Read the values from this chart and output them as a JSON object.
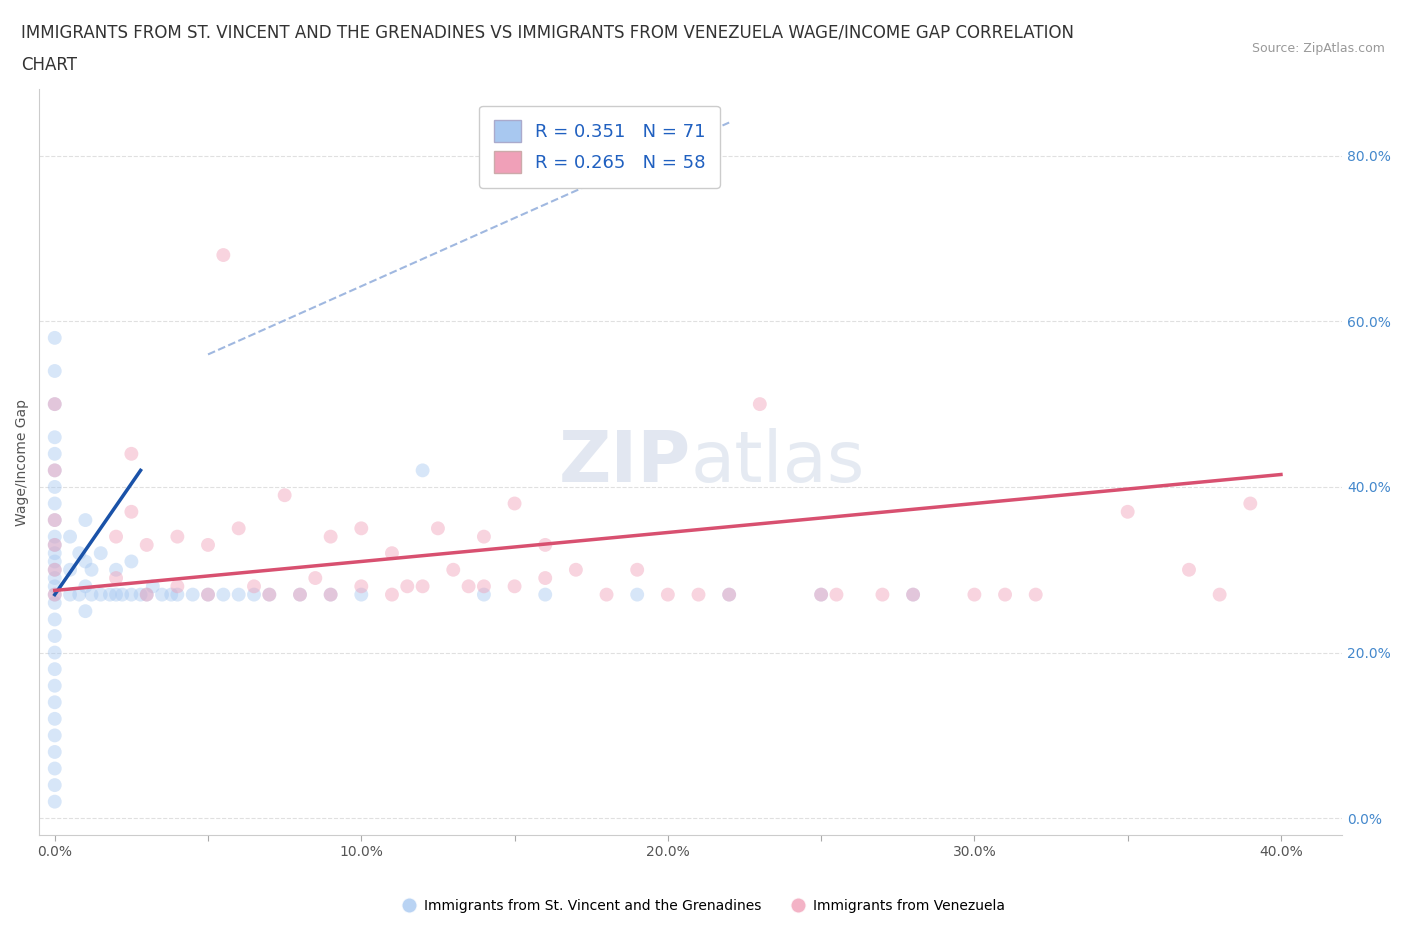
{
  "title_line1": "IMMIGRANTS FROM ST. VINCENT AND THE GRENADINES VS IMMIGRANTS FROM VENEZUELA WAGE/INCOME GAP CORRELATION",
  "title_line2": "CHART",
  "source": "Source: ZipAtlas.com",
  "ylabel": "Wage/Income Gap",
  "xlim": [
    -0.005,
    0.42
  ],
  "ylim": [
    -0.02,
    0.88
  ],
  "xtick_labels": [
    "0.0%",
    "",
    "10.0%",
    "",
    "20.0%",
    "",
    "30.0%",
    "",
    "40.0%"
  ],
  "xtick_vals": [
    0.0,
    0.05,
    0.1,
    0.15,
    0.2,
    0.25,
    0.3,
    0.35,
    0.4
  ],
  "ytick_vals": [
    0.0,
    0.2,
    0.4,
    0.6,
    0.8
  ],
  "ytick_labels": [
    "0.0%",
    "20.0%",
    "40.0%",
    "60.0%",
    "80.0%"
  ],
  "blue_color": "#a8c8f0",
  "blue_line_color": "#1a52a8",
  "pink_color": "#f0a0b8",
  "pink_line_color": "#d85070",
  "dashed_line_color": "#a0b8e0",
  "watermark_zip": "ZIP",
  "watermark_atlas": "atlas",
  "legend_R1": "R = 0.351",
  "legend_N1": "N = 71",
  "legend_R2": "R = 0.265",
  "legend_N2": "N = 58",
  "blue_scatter_x": [
    0.0,
    0.0,
    0.0,
    0.0,
    0.0,
    0.0,
    0.0,
    0.0,
    0.0,
    0.0,
    0.0,
    0.0,
    0.0,
    0.0,
    0.0,
    0.0,
    0.0,
    0.0,
    0.0,
    0.0,
    0.0,
    0.0,
    0.0,
    0.0,
    0.0,
    0.0,
    0.0,
    0.0,
    0.0,
    0.0,
    0.005,
    0.005,
    0.005,
    0.008,
    0.008,
    0.01,
    0.01,
    0.01,
    0.01,
    0.012,
    0.012,
    0.015,
    0.015,
    0.018,
    0.02,
    0.02,
    0.022,
    0.025,
    0.025,
    0.028,
    0.03,
    0.032,
    0.035,
    0.038,
    0.04,
    0.045,
    0.05,
    0.055,
    0.06,
    0.065,
    0.07,
    0.08,
    0.09,
    0.1,
    0.12,
    0.14,
    0.16,
    0.19,
    0.22,
    0.25,
    0.28
  ],
  "blue_scatter_y": [
    0.02,
    0.04,
    0.06,
    0.08,
    0.1,
    0.12,
    0.14,
    0.16,
    0.18,
    0.2,
    0.22,
    0.24,
    0.26,
    0.27,
    0.28,
    0.29,
    0.3,
    0.31,
    0.32,
    0.33,
    0.34,
    0.36,
    0.38,
    0.4,
    0.42,
    0.44,
    0.46,
    0.5,
    0.54,
    0.58,
    0.27,
    0.3,
    0.34,
    0.27,
    0.32,
    0.25,
    0.28,
    0.31,
    0.36,
    0.27,
    0.3,
    0.27,
    0.32,
    0.27,
    0.27,
    0.3,
    0.27,
    0.27,
    0.31,
    0.27,
    0.27,
    0.28,
    0.27,
    0.27,
    0.27,
    0.27,
    0.27,
    0.27,
    0.27,
    0.27,
    0.27,
    0.27,
    0.27,
    0.27,
    0.42,
    0.27,
    0.27,
    0.27,
    0.27,
    0.27,
    0.27
  ],
  "pink_scatter_x": [
    0.0,
    0.0,
    0.0,
    0.0,
    0.0,
    0.0,
    0.02,
    0.02,
    0.03,
    0.03,
    0.04,
    0.04,
    0.05,
    0.05,
    0.055,
    0.06,
    0.065,
    0.07,
    0.075,
    0.08,
    0.085,
    0.09,
    0.09,
    0.1,
    0.1,
    0.11,
    0.11,
    0.115,
    0.12,
    0.125,
    0.13,
    0.135,
    0.14,
    0.14,
    0.15,
    0.15,
    0.16,
    0.16,
    0.17,
    0.18,
    0.19,
    0.2,
    0.21,
    0.22,
    0.23,
    0.25,
    0.255,
    0.27,
    0.28,
    0.3,
    0.31,
    0.32,
    0.35,
    0.37,
    0.38,
    0.39,
    0.025,
    0.025
  ],
  "pink_scatter_y": [
    0.27,
    0.3,
    0.33,
    0.36,
    0.42,
    0.5,
    0.29,
    0.34,
    0.27,
    0.33,
    0.28,
    0.34,
    0.27,
    0.33,
    0.68,
    0.35,
    0.28,
    0.27,
    0.39,
    0.27,
    0.29,
    0.27,
    0.34,
    0.28,
    0.35,
    0.27,
    0.32,
    0.28,
    0.28,
    0.35,
    0.3,
    0.28,
    0.28,
    0.34,
    0.28,
    0.38,
    0.29,
    0.33,
    0.3,
    0.27,
    0.3,
    0.27,
    0.27,
    0.27,
    0.5,
    0.27,
    0.27,
    0.27,
    0.27,
    0.27,
    0.27,
    0.27,
    0.37,
    0.3,
    0.27,
    0.38,
    0.37,
    0.44
  ],
  "blue_trendline_x": [
    0.0,
    0.028
  ],
  "blue_trendline_y": [
    0.27,
    0.42
  ],
  "pink_trendline_x": [
    0.0,
    0.4
  ],
  "pink_trendline_y": [
    0.275,
    0.415
  ],
  "dashed_line_x": [
    0.05,
    0.22
  ],
  "dashed_line_y": [
    0.56,
    0.84
  ],
  "background_color": "#ffffff",
  "grid_color": "#e0e0e0",
  "title_fontsize": 12,
  "label_fontsize": 10,
  "tick_fontsize": 10,
  "legend_fontsize": 13,
  "marker_size": 100,
  "marker_alpha": 0.45
}
